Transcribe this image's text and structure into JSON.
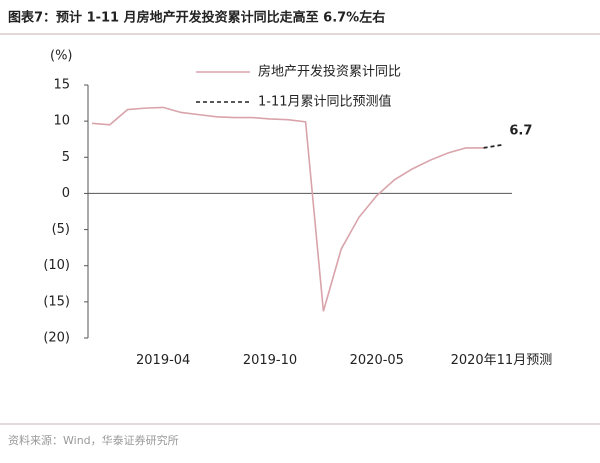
{
  "chart_data": {
    "type": "line",
    "title": "图表7：预计 1-11 月房地产开发投资累计同比走高至 6.7%左右",
    "y_label": "(%)",
    "source": "资料来源：Wind，华泰证券研究所",
    "categories": [
      null,
      null,
      null,
      null,
      "2019-04",
      null,
      null,
      null,
      null,
      null,
      "2019-10",
      null,
      null,
      null,
      null,
      null,
      "2020-05",
      null,
      null,
      null,
      null,
      null,
      null,
      "2020年11月预测"
    ],
    "series": [
      {
        "name": "房地产开发投资累计同比",
        "color": "#d9a3ab",
        "dash": false,
        "values": [
          9.7,
          9.5,
          11.6,
          11.8,
          11.9,
          11.2,
          10.9,
          10.6,
          10.5,
          10.5,
          10.3,
          10.2,
          9.9,
          -16.3,
          -7.7,
          -3.3,
          -0.3,
          1.9,
          3.4,
          4.6,
          5.6,
          6.3,
          6.3,
          null
        ]
      },
      {
        "name": "1-11月累计同比预测值",
        "color": "#222222",
        "dash": true,
        "values": [
          null,
          null,
          null,
          null,
          null,
          null,
          null,
          null,
          null,
          null,
          null,
          null,
          null,
          null,
          null,
          null,
          null,
          null,
          null,
          null,
          null,
          null,
          6.3,
          6.7
        ]
      }
    ],
    "ylim": [
      -20,
      15
    ],
    "yticks": [
      {
        "value": -20,
        "label": "(20)"
      },
      {
        "value": -15,
        "label": "(15)"
      },
      {
        "value": -10,
        "label": "(10)"
      },
      {
        "value": -5,
        "label": "(5)"
      },
      0,
      5,
      10,
      15
    ]
  }
}
